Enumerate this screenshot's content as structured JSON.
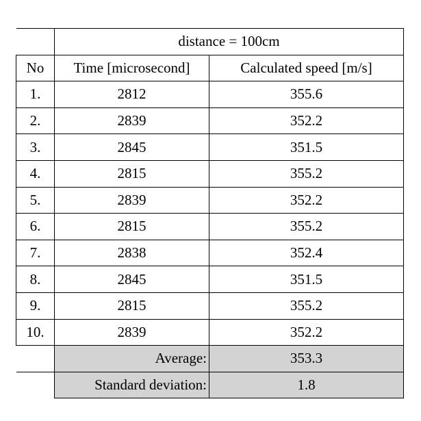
{
  "table": {
    "title": "distance = 100cm",
    "headers": {
      "no": "No",
      "time": "Time [microsecond]",
      "speed": "Calculated speed [m/s]"
    },
    "rows": [
      {
        "no": "1.",
        "time": "2812",
        "speed": "355.6"
      },
      {
        "no": "2.",
        "time": "2839",
        "speed": "352.2"
      },
      {
        "no": "3.",
        "time": "2845",
        "speed": "351.5"
      },
      {
        "no": "4.",
        "time": "2815",
        "speed": "355.2"
      },
      {
        "no": "5.",
        "time": "2839",
        "speed": "352.2"
      },
      {
        "no": "6.",
        "time": "2815",
        "speed": "355.2"
      },
      {
        "no": "7.",
        "time": "2838",
        "speed": "352.4"
      },
      {
        "no": "8.",
        "time": "2845",
        "speed": "351.5"
      },
      {
        "no": "9.",
        "time": "2815",
        "speed": "355.2"
      },
      {
        "no": "10.",
        "time": "2839",
        "speed": "352.2"
      }
    ],
    "summary": [
      {
        "label": "Average:",
        "value": "353.3"
      },
      {
        "label": "Standard deviation:",
        "value": "1.8"
      }
    ],
    "colors": {
      "summary_fill": "#d3d3d3",
      "border": "#000000"
    }
  }
}
